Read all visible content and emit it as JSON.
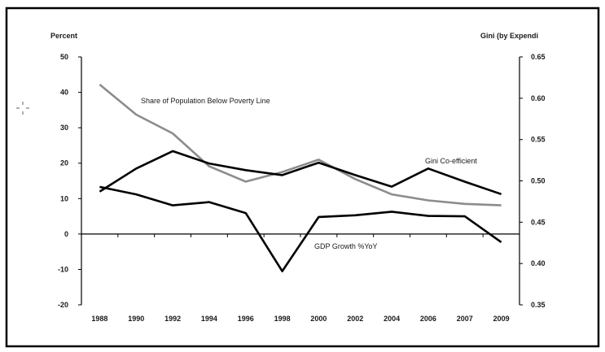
{
  "chart_data": {
    "type": "line",
    "categories": [
      "1988",
      "1990",
      "1992",
      "1994",
      "1996",
      "1998",
      "2000",
      "2002",
      "2004",
      "2006",
      "2007",
      "2009"
    ],
    "left_axis": {
      "title": "Percent",
      "ylim": [
        -20,
        50
      ],
      "tick_labels": [
        "50",
        "40",
        "30",
        "20",
        "10",
        "0",
        "-10",
        "-20"
      ]
    },
    "right_axis": {
      "title": "Gini (by Expendi",
      "ylim": [
        0.35,
        0.65
      ],
      "tick_labels": [
        "0.65",
        "0.60",
        "0.55",
        "0.50",
        "0.45",
        "0.40",
        "0.35"
      ]
    },
    "series": [
      {
        "name": "Share of Population Below Poverty Line",
        "axis": "left",
        "color": "#8c8c8c",
        "values": [
          42.2,
          33.7,
          28.4,
          19.1,
          14.8,
          17.5,
          21.0,
          15.5,
          11.2,
          9.5,
          8.5,
          8.1
        ]
      },
      {
        "name": "Gini Co-efficient",
        "axis": "right",
        "color": "#000000",
        "values": [
          0.487,
          0.515,
          0.536,
          0.521,
          0.513,
          0.507,
          0.522,
          0.507,
          0.493,
          0.515,
          0.499,
          0.484
        ]
      },
      {
        "name": "GDP Growth %YoY",
        "axis": "left",
        "color": "#000000",
        "values": [
          13.3,
          11.2,
          8.1,
          9.0,
          5.9,
          -10.5,
          4.8,
          5.3,
          6.3,
          5.1,
          5.0,
          -2.3
        ]
      }
    ],
    "grid": false,
    "legend": "none"
  }
}
